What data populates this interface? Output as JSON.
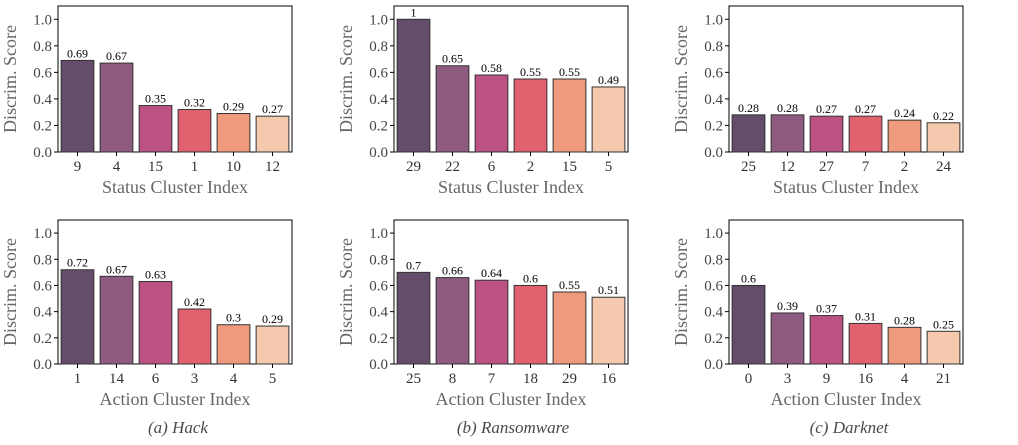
{
  "panel_captions": [
    "(a) Hack",
    "(b) Ransomware",
    "(c) Darknet"
  ],
  "colors": [
    "#644d6a",
    "#8f5a80",
    "#bb5283",
    "#e2616f",
    "#ef9a7d",
    "#f5c9ad"
  ],
  "chart_data": [
    {
      "type": "bar",
      "panel": "(a) Hack",
      "row": "status",
      "categories": [
        "9",
        "4",
        "15",
        "1",
        "10",
        "12"
      ],
      "values": [
        0.69,
        0.67,
        0.35,
        0.32,
        0.29,
        0.27
      ],
      "value_labels": [
        "0.69",
        "0.67",
        "0.35",
        "0.32",
        "0.29",
        "0.27"
      ],
      "xlabel": "Status Cluster Index",
      "ylabel": "Discrim. Score",
      "ylim": [
        0,
        1.1
      ],
      "yticks": [
        "0.0",
        "0.2",
        "0.4",
        "0.6",
        "0.8",
        "1.0"
      ]
    },
    {
      "type": "bar",
      "panel": "(b) Ransomware",
      "row": "status",
      "categories": [
        "29",
        "22",
        "6",
        "2",
        "15",
        "5"
      ],
      "values": [
        1,
        0.65,
        0.58,
        0.55,
        0.55,
        0.49
      ],
      "value_labels": [
        "1",
        "0.65",
        "0.58",
        "0.55",
        "0.55",
        "0.49"
      ],
      "xlabel": "Status Cluster Index",
      "ylabel": "Discrim. Score",
      "ylim": [
        0,
        1.1
      ],
      "yticks": [
        "0.0",
        "0.2",
        "0.4",
        "0.6",
        "0.8",
        "1.0"
      ]
    },
    {
      "type": "bar",
      "panel": "(c) Darknet",
      "row": "status",
      "categories": [
        "25",
        "12",
        "27",
        "7",
        "2",
        "24"
      ],
      "values": [
        0.28,
        0.28,
        0.27,
        0.27,
        0.24,
        0.22
      ],
      "value_labels": [
        "0.28",
        "0.28",
        "0.27",
        "0.27",
        "0.24",
        "0.22"
      ],
      "xlabel": "Status Cluster Index",
      "ylabel": "Discrim. Score",
      "ylim": [
        0,
        1.1
      ],
      "yticks": [
        "0.0",
        "0.2",
        "0.4",
        "0.6",
        "0.8",
        "1.0"
      ]
    },
    {
      "type": "bar",
      "panel": "(a) Hack",
      "row": "action",
      "categories": [
        "1",
        "14",
        "6",
        "3",
        "4",
        "5"
      ],
      "values": [
        0.72,
        0.67,
        0.63,
        0.42,
        0.3,
        0.29
      ],
      "value_labels": [
        "0.72",
        "0.67",
        "0.63",
        "0.42",
        "0.3",
        "0.29"
      ],
      "xlabel": "Action Cluster Index",
      "ylabel": "Discrim. Score",
      "ylim": [
        0,
        1.1
      ],
      "yticks": [
        "0.0",
        "0.2",
        "0.4",
        "0.6",
        "0.8",
        "1.0"
      ]
    },
    {
      "type": "bar",
      "panel": "(b) Ransomware",
      "row": "action",
      "categories": [
        "25",
        "8",
        "7",
        "18",
        "29",
        "16"
      ],
      "values": [
        0.7,
        0.66,
        0.64,
        0.6,
        0.55,
        0.51
      ],
      "value_labels": [
        "0.7",
        "0.66",
        "0.64",
        "0.6",
        "0.55",
        "0.51"
      ],
      "xlabel": "Action Cluster Index",
      "ylabel": "Discrim. Score",
      "ylim": [
        0,
        1.1
      ],
      "yticks": [
        "0.0",
        "0.2",
        "0.4",
        "0.6",
        "0.8",
        "1.0"
      ]
    },
    {
      "type": "bar",
      "panel": "(c) Darknet",
      "row": "action",
      "categories": [
        "0",
        "3",
        "9",
        "16",
        "4",
        "21"
      ],
      "values": [
        0.6,
        0.39,
        0.37,
        0.31,
        0.28,
        0.25
      ],
      "value_labels": [
        "0.6",
        "0.39",
        "0.37",
        "0.31",
        "0.28",
        "0.25"
      ],
      "xlabel": "Action Cluster Index",
      "ylabel": "Discrim. Score",
      "ylim": [
        0,
        1.1
      ],
      "yticks": [
        "0.0",
        "0.2",
        "0.4",
        "0.6",
        "0.8",
        "1.0"
      ]
    }
  ]
}
